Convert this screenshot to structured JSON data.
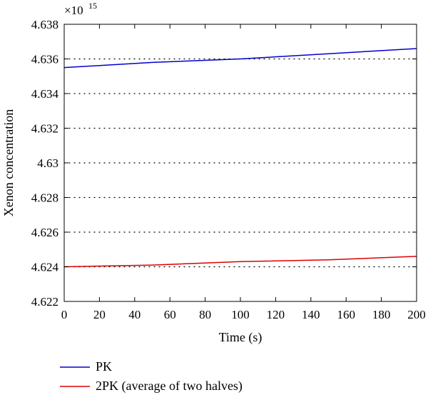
{
  "chart_data": {
    "type": "line",
    "title": "",
    "xlabel": "Time (s)",
    "ylabel": "Xenon concentration",
    "y_multiplier_base": "×10",
    "y_multiplier_exponent": "15",
    "xlim": [
      0,
      200
    ],
    "ylim": [
      4.622,
      4.638
    ],
    "xticks": [
      0,
      20,
      40,
      60,
      80,
      100,
      120,
      140,
      160,
      180,
      200
    ],
    "xtick_labels": [
      "0",
      "20",
      "40",
      "60",
      "80",
      "100",
      "120",
      "140",
      "160",
      "180",
      "200"
    ],
    "yticks": [
      4.622,
      4.624,
      4.626,
      4.628,
      4.63,
      4.632,
      4.634,
      4.636,
      4.638
    ],
    "ytick_labels": [
      "4.622",
      "4.624",
      "4.626",
      "4.628",
      "4.63",
      "4.632",
      "4.634",
      "4.636",
      "4.638"
    ],
    "grid": "horizontal dotted",
    "legend_position": "bottom-left, below plot",
    "series": [
      {
        "name": "PK",
        "color": "#0000cc",
        "x": [
          0,
          50,
          100,
          150,
          200
        ],
        "y": [
          4.6355,
          4.6358,
          4.636,
          4.6363,
          4.6366
        ]
      },
      {
        "name": "2PK (average of two halves)",
        "color": "#dd0000",
        "x": [
          0,
          50,
          100,
          150,
          200
        ],
        "y": [
          4.624,
          4.6241,
          4.6243,
          4.6244,
          4.6246
        ]
      }
    ]
  }
}
